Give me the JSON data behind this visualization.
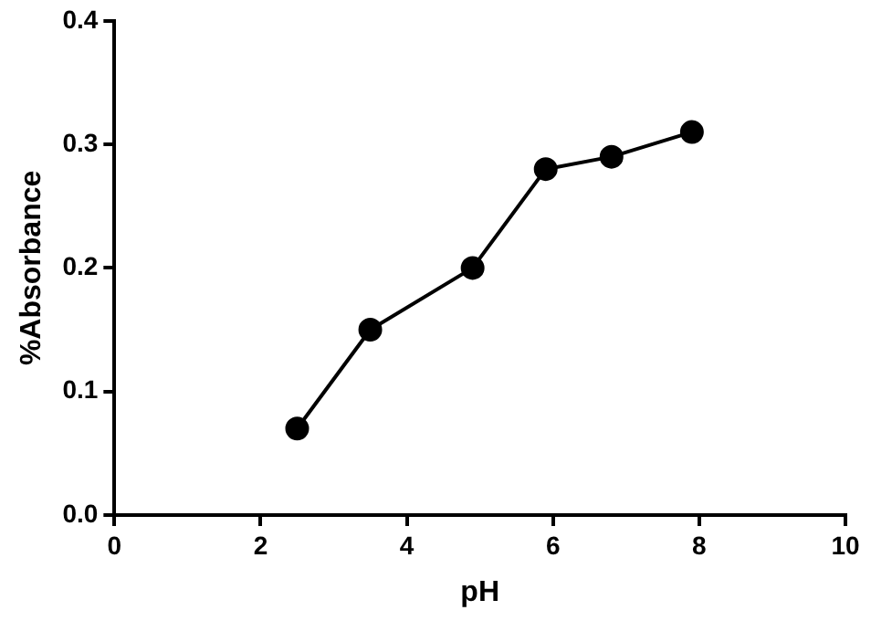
{
  "chart_data": {
    "type": "line",
    "xlabel": "pH",
    "ylabel": "%Absorbance",
    "x": [
      2.5,
      3.5,
      4.9,
      5.9,
      6.8,
      7.9
    ],
    "series": [
      {
        "color": "#000000",
        "values": [
          0.07,
          0.15,
          0.2,
          0.28,
          0.29,
          0.31
        ]
      }
    ],
    "xlim": [
      0,
      10
    ],
    "xticks": [
      0,
      2,
      4,
      6,
      8,
      10
    ],
    "ylim": [
      0,
      0.4
    ],
    "yticks": [
      {
        "value": 0,
        "label": "0.0"
      },
      0.1,
      0.2,
      0.3,
      0.4
    ],
    "grid": false,
    "legend": false,
    "marker": "circle",
    "line_style": "solid"
  }
}
